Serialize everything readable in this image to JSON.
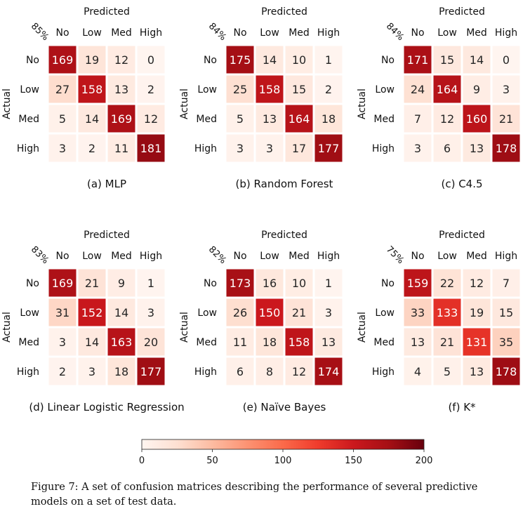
{
  "chart_data": [
    {
      "type": "heatmap",
      "title": "(a) MLP",
      "xlabel": "Predicted",
      "ylabel": "Actual",
      "accuracy_label": "85%",
      "x_categories": [
        "No",
        "Low",
        "Med",
        "High"
      ],
      "y_categories": [
        "No",
        "Low",
        "Med",
        "High"
      ],
      "values": [
        [
          169,
          19,
          12,
          0
        ],
        [
          27,
          158,
          13,
          2
        ],
        [
          5,
          14,
          169,
          12
        ],
        [
          3,
          2,
          11,
          181
        ]
      ]
    },
    {
      "type": "heatmap",
      "title": "(b) Random Forest",
      "xlabel": "Predicted",
      "ylabel": "Actual",
      "accuracy_label": "84%",
      "x_categories": [
        "No",
        "Low",
        "Med",
        "High"
      ],
      "y_categories": [
        "No",
        "Low",
        "Med",
        "High"
      ],
      "values": [
        [
          175,
          14,
          10,
          1
        ],
        [
          25,
          158,
          15,
          2
        ],
        [
          5,
          13,
          164,
          18
        ],
        [
          3,
          3,
          17,
          177
        ]
      ]
    },
    {
      "type": "heatmap",
      "title": "(c) C4.5",
      "xlabel": "Predicted",
      "ylabel": "Actual",
      "accuracy_label": "84%",
      "x_categories": [
        "No",
        "Low",
        "Med",
        "High"
      ],
      "y_categories": [
        "No",
        "Low",
        "Med",
        "High"
      ],
      "values": [
        [
          171,
          15,
          14,
          0
        ],
        [
          24,
          164,
          9,
          3
        ],
        [
          7,
          12,
          160,
          21
        ],
        [
          3,
          6,
          13,
          178
        ]
      ]
    },
    {
      "type": "heatmap",
      "title": "(d) Linear Logistic Regression",
      "xlabel": "Predicted",
      "ylabel": "Actual",
      "accuracy_label": "83%",
      "x_categories": [
        "No",
        "Low",
        "Med",
        "High"
      ],
      "y_categories": [
        "No",
        "Low",
        "Med",
        "High"
      ],
      "values": [
        [
          169,
          21,
          9,
          1
        ],
        [
          31,
          152,
          14,
          3
        ],
        [
          3,
          14,
          163,
          20
        ],
        [
          2,
          3,
          18,
          177
        ]
      ]
    },
    {
      "type": "heatmap",
      "title": "(e) Naïve Bayes",
      "xlabel": "Predicted",
      "ylabel": "Actual",
      "accuracy_label": "82%",
      "x_categories": [
        "No",
        "Low",
        "Med",
        "High"
      ],
      "y_categories": [
        "No",
        "Low",
        "Med",
        "High"
      ],
      "values": [
        [
          173,
          16,
          10,
          1
        ],
        [
          26,
          150,
          21,
          3
        ],
        [
          11,
          18,
          158,
          13
        ],
        [
          6,
          8,
          12,
          174
        ]
      ]
    },
    {
      "type": "heatmap",
      "title": "(f) K*",
      "xlabel": "Predicted",
      "ylabel": "Actual",
      "accuracy_label": "75%",
      "x_categories": [
        "No",
        "Low",
        "Med",
        "High"
      ],
      "y_categories": [
        "No",
        "Low",
        "Med",
        "High"
      ],
      "values": [
        [
          159,
          22,
          12,
          7
        ],
        [
          33,
          133,
          19,
          15
        ],
        [
          13,
          21,
          131,
          35
        ],
        [
          4,
          5,
          13,
          178
        ]
      ]
    }
  ],
  "colorbar": {
    "range": [
      0,
      200
    ],
    "ticks": [
      0,
      50,
      100,
      150,
      200
    ],
    "colormap": "Reds",
    "color_stops": [
      "#fff5f0",
      "#fee0d2",
      "#fcbba1",
      "#fc9272",
      "#fb6a4a",
      "#ef3b2c",
      "#cb181d",
      "#a50f15",
      "#67000d"
    ]
  },
  "caption": "Figure 7:  A set of confusion matrices describing the performance of several predictive models on a set of test data."
}
